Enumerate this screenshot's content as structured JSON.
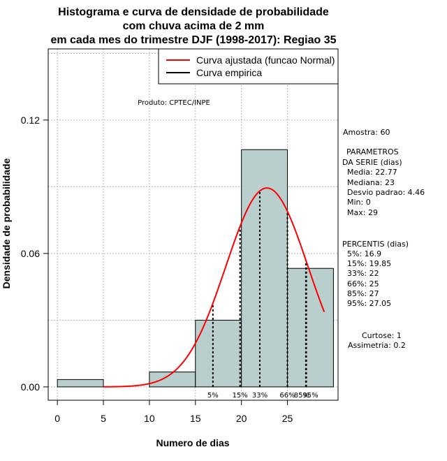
{
  "chart_data": {
    "type": "bar",
    "title_lines": [
      "Histograma e curva de densidade de probabilidade",
      "com chuva acima de 2 mm",
      "em cada mes do trimestre DJF (1998-2017): Regiao 35"
    ],
    "xlabel": "Numero de dias",
    "ylabel": "Densidade de probabilidade",
    "xlim": [
      -1,
      30.5
    ],
    "ylim": [
      -0.006,
      0.152
    ],
    "x_ticks": [
      0,
      5,
      10,
      15,
      20,
      25
    ],
    "y_ticks": [
      0.0,
      0.06,
      0.12
    ],
    "y_tick_labels": [
      "0.00",
      "0.06",
      "0.12"
    ],
    "grid": true,
    "bins": [
      {
        "from": 0,
        "to": 5,
        "density": 0.0033
      },
      {
        "from": 5,
        "to": 10,
        "density": 0
      },
      {
        "from": 10,
        "to": 15,
        "density": 0.0067
      },
      {
        "from": 15,
        "to": 20,
        "density": 0.03
      },
      {
        "from": 20,
        "to": 25,
        "density": 0.1067
      },
      {
        "from": 25,
        "to": 30,
        "density": 0.0533
      }
    ],
    "fit": {
      "mean": 22.77,
      "sd": 4.46,
      "x_from": 5,
      "x_to": 29
    },
    "percentile_lines": [
      {
        "x": 16.9,
        "label": "5%"
      },
      {
        "x": 19.85,
        "label": "15%"
      },
      {
        "x": 22,
        "label": "33%"
      },
      {
        "x": 25,
        "label": "66%"
      },
      {
        "x": 27,
        "label": "85%"
      },
      {
        "x": 27.05,
        "label": "95%"
      }
    ],
    "legend": {
      "position": "top-right",
      "entries": [
        {
          "label": "Curva ajustada (funcao Normal)",
          "color": "#ff0000"
        },
        {
          "label": "Curva empirica",
          "color": "#000000"
        }
      ]
    },
    "annotation": "Produto: CPTEC/INPE",
    "bar_color": "#b8cfce"
  },
  "side_panel": {
    "sample": "Amostra: 60",
    "params_title_1": "PARAMETROS",
    "params_title_2": "DA SERIE (dias)",
    "media": "Media: 22.77",
    "mediana": "Mediana: 23",
    "desvio": "Desvio padrao: 4.46",
    "min": "Min: 0",
    "max": "Max: 29",
    "percentis_title": "PERCENTIS (dias)",
    "p5": "5%: 16.9",
    "p15": "15%: 19.85",
    "p33": "33%: 22",
    "p66": "66%: 25",
    "p85": "85%: 27",
    "p95": "95%: 27.05",
    "curtose": "Curtose: 1",
    "assimetria": "Assimetria: 0.2"
  }
}
